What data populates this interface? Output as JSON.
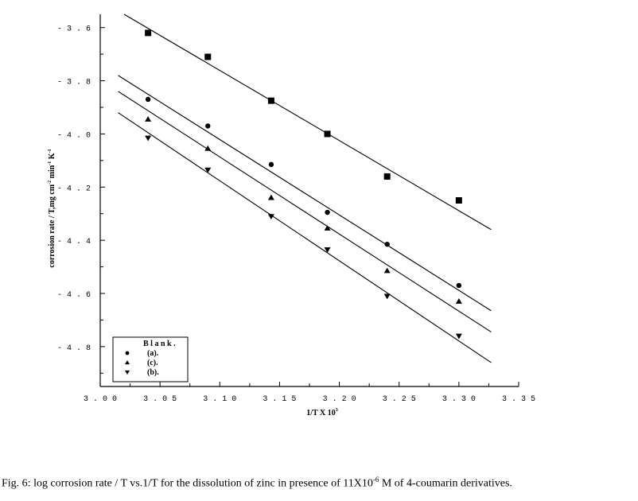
{
  "chart_data": {
    "type": "scatter",
    "xlabel_main": "1/T  X  10",
    "xlabel_sup": "3",
    "ylabel_main": "corrosion rate / T,mg cm",
    "ylabel_sup1": "-2",
    "ylabel_mid": " min",
    "ylabel_sup2": "-1",
    "ylabel_end": " K",
    "ylabel_sup3": "-1",
    "xlim": [
      3.0,
      3.35
    ],
    "ylim": [
      -4.95,
      -3.55
    ],
    "x_ticks": [
      3.0,
      3.05,
      3.1,
      3.15,
      3.2,
      3.25,
      3.3,
      3.35
    ],
    "x_tick_labels": [
      "3 . 0 0",
      "3 . 0 5",
      "3 . 1 0",
      "3 . 1 5",
      "3 . 2 0",
      "3 . 2 5",
      "3 . 3 0",
      "3 . 3 5"
    ],
    "y_ticks": [
      -3.6,
      -3.8,
      -4.0,
      -4.2,
      -4.4,
      -4.6,
      -4.8
    ],
    "y_tick_labels": [
      "- 3 . 6",
      "- 3 . 8",
      "- 4 . 0",
      "- 4 . 2",
      "- 4 . 4",
      "- 4 . 6",
      "- 4 . 8"
    ],
    "legend_position": "bottom-left",
    "series": [
      {
        "name": "B l a n k .",
        "marker": "square",
        "x": [
          3.04,
          3.09,
          3.143,
          3.19,
          3.24,
          3.3
        ],
        "y": [
          -3.62,
          -3.71,
          -3.875,
          -4.0,
          -4.16,
          -4.25
        ],
        "fit": [
          [
            3.02,
            -3.55
          ],
          [
            3.327,
            -4.36
          ]
        ]
      },
      {
        "name": "(a).",
        "marker": "circle",
        "x": [
          3.04,
          3.09,
          3.143,
          3.19,
          3.24,
          3.3
        ],
        "y": [
          -3.87,
          -3.97,
          -4.115,
          -4.295,
          -4.415,
          -4.57
        ],
        "fit": [
          [
            3.015,
            -3.78
          ],
          [
            3.327,
            -4.665
          ]
        ]
      },
      {
        "name": "(c).",
        "marker": "triangle-up",
        "x": [
          3.04,
          3.09,
          3.143,
          3.19,
          3.24,
          3.3
        ],
        "y": [
          -3.945,
          -4.055,
          -4.24,
          -4.355,
          -4.515,
          -4.63
        ],
        "fit": [
          [
            3.015,
            -3.84
          ],
          [
            3.327,
            -4.745
          ]
        ]
      },
      {
        "name": "(b).",
        "marker": "triangle-down",
        "x": [
          3.04,
          3.09,
          3.143,
          3.19,
          3.24,
          3.3
        ],
        "y": [
          -4.015,
          -4.135,
          -4.31,
          -4.435,
          -4.61,
          -4.76
        ],
        "fit": [
          [
            3.015,
            -3.92
          ],
          [
            3.327,
            -4.86
          ]
        ]
      }
    ]
  },
  "caption": {
    "prefix": "Fig. 6: log corrosion rate / T vs.1/T for the dissolution of zinc in presence of  11X10",
    "sup": "-6",
    "suffix": " M of 4-coumarin derivatives."
  }
}
